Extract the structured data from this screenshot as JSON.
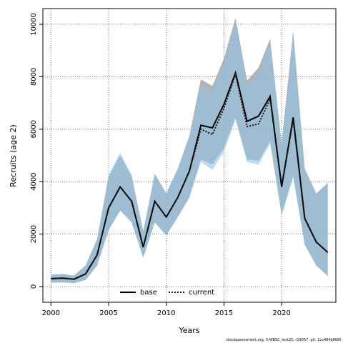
{
  "chart_data": {
    "type": "line",
    "xlabel": "Years",
    "ylabel": "Recruits (age 2)",
    "xlim": [
      1999.3,
      2024.7
    ],
    "ylim": [
      -600,
      10600
    ],
    "x_ticks": [
      2000,
      2005,
      2010,
      2015,
      2020
    ],
    "y_ticks": [
      0,
      2000,
      4000,
      6000,
      8000,
      10000
    ],
    "grid": true,
    "legend_position": "bottom-center",
    "x": [
      2000,
      2001,
      2002,
      2003,
      2004,
      2005,
      2006,
      2007,
      2008,
      2009,
      2010,
      2011,
      2012,
      2013,
      2014,
      2015,
      2016,
      2017,
      2018,
      2019,
      2020,
      2021,
      2022,
      2023,
      2024
    ],
    "series": [
      {
        "name": "base",
        "style": "solid",
        "color": "#000000",
        "band_color": "#9a9a9a",
        "values": [
          300,
          320,
          280,
          480,
          1200,
          3000,
          3800,
          3250,
          1500,
          3250,
          2650,
          3400,
          4400,
          6150,
          6050,
          6950,
          8150,
          6300,
          6500,
          7250,
          3800,
          6450,
          2600,
          1700,
          1300
        ],
        "lower": [
          150,
          160,
          130,
          250,
          800,
          2150,
          2900,
          2450,
          1100,
          2450,
          1950,
          2650,
          3400,
          4850,
          4650,
          5300,
          6450,
          4850,
          4800,
          5550,
          2750,
          4250,
          1600,
          800,
          400
        ],
        "upper": [
          450,
          480,
          420,
          800,
          1800,
          4200,
          5000,
          4200,
          2100,
          4300,
          3550,
          4500,
          5750,
          7900,
          7650,
          8700,
          10250,
          7850,
          8350,
          9450,
          5450,
          9750,
          4500,
          3550,
          3950
        ]
      },
      {
        "name": "current",
        "style": "dotted",
        "color": "#1a1a1a",
        "band_color": "#8fc3e6",
        "values": [
          300,
          320,
          280,
          480,
          1200,
          3000,
          3800,
          3250,
          1500,
          3250,
          2650,
          3400,
          4400,
          6000,
          5800,
          6800,
          8100,
          6100,
          6200,
          7150,
          3850,
          6350,
          2600,
          1700,
          1300
        ],
        "lower": [
          150,
          160,
          130,
          250,
          800,
          2150,
          2900,
          2450,
          1100,
          2450,
          1950,
          2650,
          3400,
          4750,
          4450,
          5150,
          6350,
          4750,
          4650,
          5450,
          2700,
          4150,
          1600,
          800,
          400
        ],
        "upper": [
          450,
          480,
          420,
          800,
          1800,
          4250,
          5100,
          4250,
          2100,
          4300,
          3550,
          4500,
          5700,
          7700,
          7450,
          8500,
          10150,
          7700,
          8150,
          9300,
          5500,
          9600,
          4500,
          3550,
          3950
        ]
      }
    ]
  },
  "footer_note": "stockassessment.org, S-WBSC_test25, r19057, git: 1cc464b808f"
}
